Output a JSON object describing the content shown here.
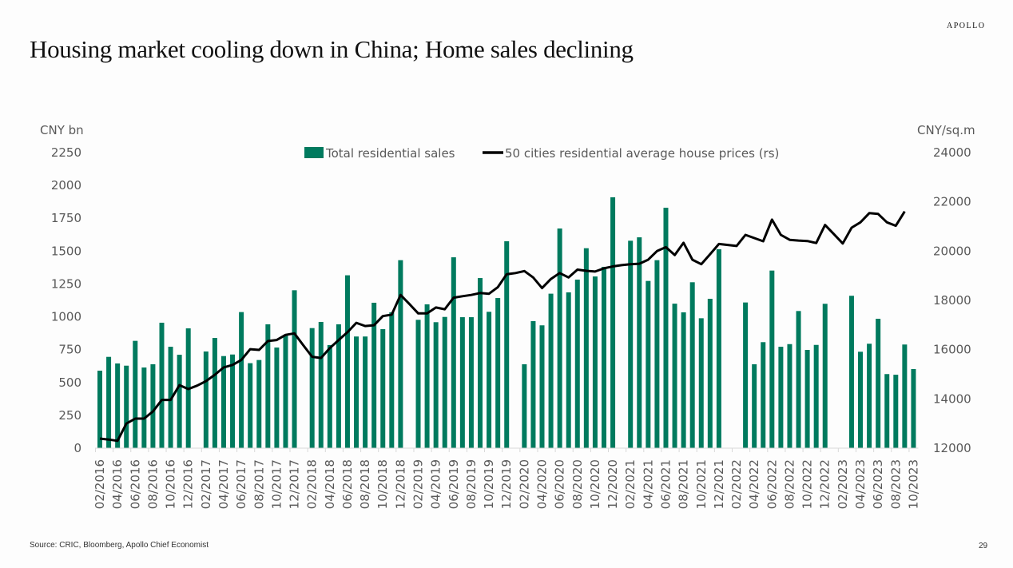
{
  "header": {
    "logo": "APOLLO",
    "title": "Housing market cooling down in China; Home sales declining"
  },
  "footer": {
    "source": "Source: CRIC, Bloomberg, Apollo Chief Economist",
    "page": "29"
  },
  "colors": {
    "bars": "#007a5e",
    "line": "#000000",
    "axis_text": "#595959"
  },
  "chart_data": {
    "type": "bar+line",
    "title": "Housing market cooling down in China; Home sales declining",
    "ylabel_left": "CNY bn",
    "ylabel_right": "CNY/sq.m",
    "ylim_left": [
      0,
      2250
    ],
    "ylim_right": [
      12000,
      24000
    ],
    "yticks_left": [
      "0",
      "250",
      "500",
      "750",
      "1000",
      "1250",
      "1500",
      "1750",
      "2000",
      "2250"
    ],
    "yticks_right": [
      "12000",
      "14000",
      "16000",
      "18000",
      "20000",
      "22000",
      "24000"
    ],
    "legend_position": "top-center",
    "start": "02/2016",
    "end": "10/2023",
    "xtick_labels": [
      "02/2016",
      "04/2016",
      "06/2016",
      "08/2016",
      "10/2016",
      "12/2016",
      "02/2017",
      "04/2017",
      "06/2017",
      "08/2017",
      "10/2017",
      "12/2017",
      "02/2018",
      "04/2018",
      "06/2018",
      "08/2018",
      "10/2018",
      "12/2018",
      "02/2019",
      "04/2019",
      "06/2019",
      "08/2019",
      "10/2019",
      "12/2019",
      "02/2020",
      "04/2020",
      "06/2020",
      "08/2020",
      "10/2020",
      "12/2020",
      "02/2021",
      "04/2021",
      "06/2021",
      "08/2021",
      "10/2021",
      "12/2021",
      "02/2022",
      "04/2022",
      "06/2022",
      "08/2022",
      "10/2022",
      "12/2022",
      "02/2023",
      "04/2023",
      "06/2023",
      "08/2023",
      "10/2023"
    ],
    "series": [
      {
        "name": "Total residential sales",
        "type": "bar",
        "axis": "left",
        "values": [
          590,
          695,
          645,
          628,
          817,
          614,
          639,
          955,
          772,
          711,
          912,
          null,
          736,
          839,
          701,
          713,
          1036,
          647,
          671,
          943,
          766,
          857,
          1202,
          null,
          914,
          961,
          785,
          943,
          1316,
          850,
          850,
          1107,
          906,
          1034,
          1431,
          null,
          977,
          1095,
          959,
          999,
          1453,
          997,
          997,
          1295,
          1038,
          1143,
          1575,
          null,
          639,
          967,
          935,
          1176,
          1672,
          1186,
          1283,
          1522,
          1307,
          1380,
          1910,
          null,
          1579,
          1605,
          1273,
          1431,
          1830,
          1100,
          1034,
          1263,
          989,
          1137,
          1514,
          null,
          3,
          1109,
          639,
          807,
          1352,
          772,
          792,
          1044,
          748,
          786,
          1099,
          null,
          3,
          1160,
          734,
          795,
          985,
          564,
          559,
          789,
          602
        ]
      },
      {
        "name": "50 cities residential average house prices (rs)",
        "type": "line",
        "axis": "right",
        "values": [
          12390,
          12350,
          12300,
          13000,
          13200,
          13200,
          13490,
          13960,
          13960,
          14560,
          14400,
          14540,
          14720,
          14980,
          15280,
          15380,
          15580,
          16020,
          15990,
          16350,
          16390,
          16600,
          16660,
          16180,
          15710,
          15660,
          16060,
          16390,
          16710,
          17090,
          16960,
          16990,
          17360,
          17420,
          18220,
          17850,
          17470,
          17470,
          17710,
          17640,
          18110,
          18170,
          18220,
          18300,
          18270,
          18540,
          19060,
          19110,
          19190,
          18930,
          18500,
          18870,
          19110,
          18930,
          19250,
          19200,
          19170,
          19300,
          19380,
          19430,
          19470,
          19490,
          19650,
          20000,
          20160,
          19840,
          20340,
          19650,
          19470,
          19870,
          20290,
          20250,
          20210,
          20660,
          20530,
          20400,
          21280,
          20660,
          20460,
          20430,
          20410,
          20330,
          21060,
          20690,
          20310,
          20950,
          21170,
          21540,
          21510,
          21170,
          21030,
          21610,
          null
        ]
      }
    ]
  }
}
